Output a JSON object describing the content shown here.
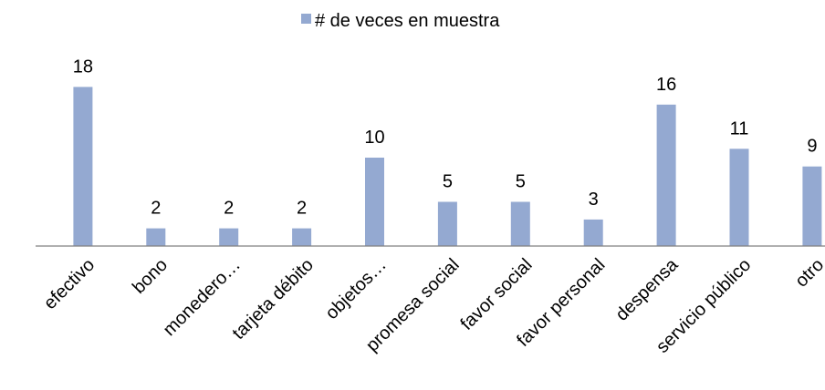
{
  "chart_data": {
    "type": "bar",
    "title": "",
    "xlabel": "",
    "ylabel": "",
    "ylim": [
      0,
      18
    ],
    "grid": false,
    "legend_position": "top",
    "categories": [
      "efectivo",
      "bono",
      "monedero…",
      "tarjeta débito",
      "objetos…",
      "promesa social",
      "favor social",
      "favor personal",
      "despensa",
      "servicio público",
      "otro"
    ],
    "series": [
      {
        "name": "# de veces en muestra",
        "color": "#94a9d1",
        "values": [
          18,
          2,
          2,
          2,
          10,
          5,
          5,
          3,
          16,
          11,
          9
        ],
        "labels": [
          "18",
          "2",
          "2",
          "2",
          "10",
          "5",
          "5",
          "3",
          "16",
          "11",
          "9"
        ]
      }
    ]
  }
}
